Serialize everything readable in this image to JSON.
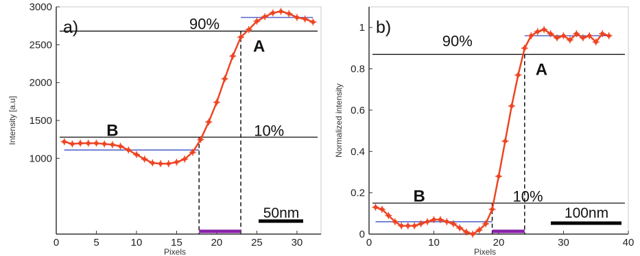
{
  "chart_data": [
    {
      "type": "line",
      "panel_label": "a)",
      "xlabel": "Pixels",
      "ylabel": "Intensity [a.u]",
      "xlim": [
        0,
        33
      ],
      "ylim": [
        0,
        3000
      ],
      "xticks": [
        0,
        5,
        10,
        15,
        20,
        25,
        30
      ],
      "yticks": [
        1000,
        1500,
        2000,
        2500,
        3000
      ],
      "series": [
        {
          "color": "#ee4422",
          "x": [
            1,
            2,
            3,
            4,
            5,
            6,
            7,
            8,
            9,
            10,
            11,
            12,
            13,
            14,
            15,
            16,
            17,
            18,
            19,
            20,
            21,
            22,
            23,
            24,
            25,
            26,
            27,
            28,
            29,
            30,
            31,
            32
          ],
          "y": [
            1220,
            1190,
            1200,
            1200,
            1200,
            1190,
            1180,
            1160,
            1110,
            1050,
            990,
            940,
            930,
            930,
            950,
            990,
            1080,
            1250,
            1480,
            1740,
            2050,
            2350,
            2600,
            2700,
            2810,
            2870,
            2920,
            2940,
            2910,
            2860,
            2840,
            2800
          ]
        }
      ],
      "reference_lines": [
        {
          "label": "90%",
          "y": 2680
        },
        {
          "label": "10%",
          "y": 1280
        }
      ],
      "level_lines": [
        {
          "y": 1110,
          "x_range": [
            1,
            17.8
          ],
          "color": "#5566cc"
        },
        {
          "y": 2860,
          "x_range": [
            23,
            32
          ],
          "color": "#5566cc"
        }
      ],
      "markers": [
        {
          "label": "A",
          "x": 23,
          "y": 2680
        },
        {
          "label": "B",
          "x": 17.8,
          "y": 1280
        }
      ],
      "span": {
        "x_range": [
          17.8,
          23
        ],
        "color": "#8822aa"
      },
      "scale_bar": {
        "label": "50nm"
      }
    },
    {
      "type": "line",
      "panel_label": "b)",
      "xlabel": "Pixels",
      "ylabel": "Normalized intensity",
      "xlim": [
        0,
        40
      ],
      "ylim": [
        0,
        1.1
      ],
      "xticks": [
        0,
        10,
        20,
        30,
        40
      ],
      "yticks": [
        0,
        0.2,
        0.4,
        0.6,
        0.8,
        1
      ],
      "series": [
        {
          "color": "#ee4422",
          "x": [
            1,
            2,
            3,
            4,
            5,
            6,
            7,
            8,
            9,
            10,
            11,
            12,
            13,
            14,
            15,
            16,
            17,
            18,
            19,
            20,
            21,
            22,
            23,
            24,
            25,
            26,
            27,
            28,
            29,
            30,
            31,
            32,
            33,
            34,
            35,
            36,
            37
          ],
          "y": [
            0.13,
            0.12,
            0.09,
            0.06,
            0.04,
            0.04,
            0.04,
            0.05,
            0.06,
            0.07,
            0.07,
            0.06,
            0.05,
            0.03,
            0.01,
            0.0,
            0.02,
            0.05,
            0.12,
            0.28,
            0.45,
            0.62,
            0.77,
            0.9,
            0.96,
            0.98,
            0.99,
            0.97,
            0.95,
            0.96,
            0.94,
            0.97,
            0.95,
            0.96,
            0.93,
            0.97,
            0.96
          ]
        }
      ],
      "reference_lines": [
        {
          "label": "90%",
          "y": 0.87
        },
        {
          "label": "10%",
          "y": 0.15
        }
      ],
      "level_lines": [
        {
          "y": 0.06,
          "x_range": [
            1,
            19
          ],
          "color": "#5566cc"
        },
        {
          "y": 0.96,
          "x_range": [
            24,
            37
          ],
          "color": "#5566cc"
        }
      ],
      "markers": [
        {
          "label": "A",
          "x": 24,
          "y": 0.87
        },
        {
          "label": "B",
          "x": 19,
          "y": 0.15
        }
      ],
      "span": {
        "x_range": [
          19,
          24
        ],
        "color": "#8822aa"
      },
      "scale_bar": {
        "label": "100nm"
      }
    }
  ]
}
